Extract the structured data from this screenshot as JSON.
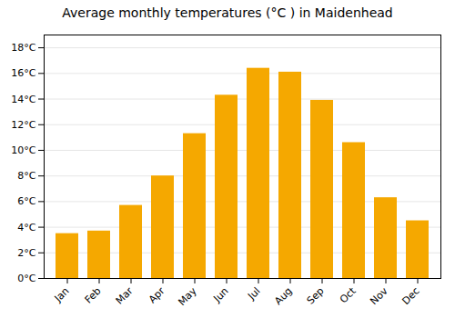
{
  "chart_data": {
    "type": "bar",
    "title": "Average monthly temperatures (°C ) in Maidenhead",
    "categories": [
      "Jan",
      "Feb",
      "Mar",
      "Apr",
      "May",
      "Jun",
      "Jul",
      "Aug",
      "Sep",
      "Oct",
      "Nov",
      "Dec"
    ],
    "values": [
      3.5,
      3.7,
      5.7,
      8.0,
      11.3,
      14.3,
      16.4,
      16.1,
      13.9,
      10.6,
      6.3,
      4.5
    ],
    "color": "#F5A800",
    "ylim": [
      0,
      19
    ],
    "yticks": [
      {
        "value": 0,
        "label": "0°C"
      },
      {
        "value": 2,
        "label": "2°C"
      },
      {
        "value": 4,
        "label": "4°C"
      },
      {
        "value": 6,
        "label": "6°C"
      },
      {
        "value": 8,
        "label": "8°C"
      },
      {
        "value": 10,
        "label": "10°C"
      },
      {
        "value": 12,
        "label": "12°C"
      },
      {
        "value": 14,
        "label": "14°C"
      },
      {
        "value": 16,
        "label": "16°C"
      },
      {
        "value": 18,
        "label": "18°C"
      }
    ],
    "grid": true
  }
}
